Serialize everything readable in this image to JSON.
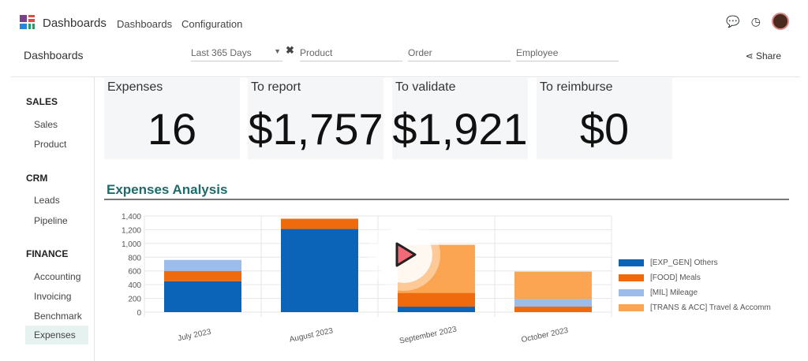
{
  "app": {
    "name": "Dashboards",
    "menu": [
      "Dashboards",
      "Configuration"
    ]
  },
  "breadcrumb": "Dashboards",
  "filters": {
    "date": "Last 365 Days",
    "product_placeholder": "Product",
    "order_placeholder": "Order",
    "employee_placeholder": "Employee"
  },
  "share_label": "Share",
  "sidebar": {
    "sections": [
      {
        "title": "SALES",
        "items": [
          "Sales",
          "Product"
        ]
      },
      {
        "title": "CRM",
        "items": [
          "Leads",
          "Pipeline"
        ]
      },
      {
        "title": "FINANCE",
        "items": [
          "Accounting",
          "Invoicing",
          "Benchmark",
          "Expenses"
        ]
      }
    ],
    "active": "Expenses"
  },
  "kpis": [
    {
      "label": "Expenses",
      "value": "16"
    },
    {
      "label": "To report",
      "value": "$1,757"
    },
    {
      "label": "To validate",
      "value": "$1,921"
    },
    {
      "label": "To reimburse",
      "value": "$0"
    }
  ],
  "section_title": "Expenses Analysis",
  "chart_data": {
    "type": "bar",
    "stacked": true,
    "categories": [
      "July 2023",
      "August 2023",
      "September 2023",
      "October 2023"
    ],
    "series": [
      {
        "name": "[EXP_GEN] Others",
        "color": "#0b64b8",
        "values": [
          450,
          1210,
          80,
          0
        ]
      },
      {
        "name": "[FOOD] Meals",
        "color": "#ee6a0c",
        "values": [
          150,
          150,
          200,
          80
        ]
      },
      {
        "name": "[MIL] Mileage",
        "color": "#9cbdec",
        "values": [
          160,
          0,
          0,
          110
        ]
      },
      {
        "name": "[TRANS & ACC] Travel & Accomm",
        "color": "#fba552",
        "values": [
          0,
          0,
          700,
          400
        ]
      }
    ],
    "ylim": [
      0,
      1400
    ],
    "yticks": [
      "0",
      "200",
      "400",
      "600",
      "800",
      "1,000",
      "1,200",
      "1,400"
    ],
    "grid": true,
    "legend": "right"
  }
}
